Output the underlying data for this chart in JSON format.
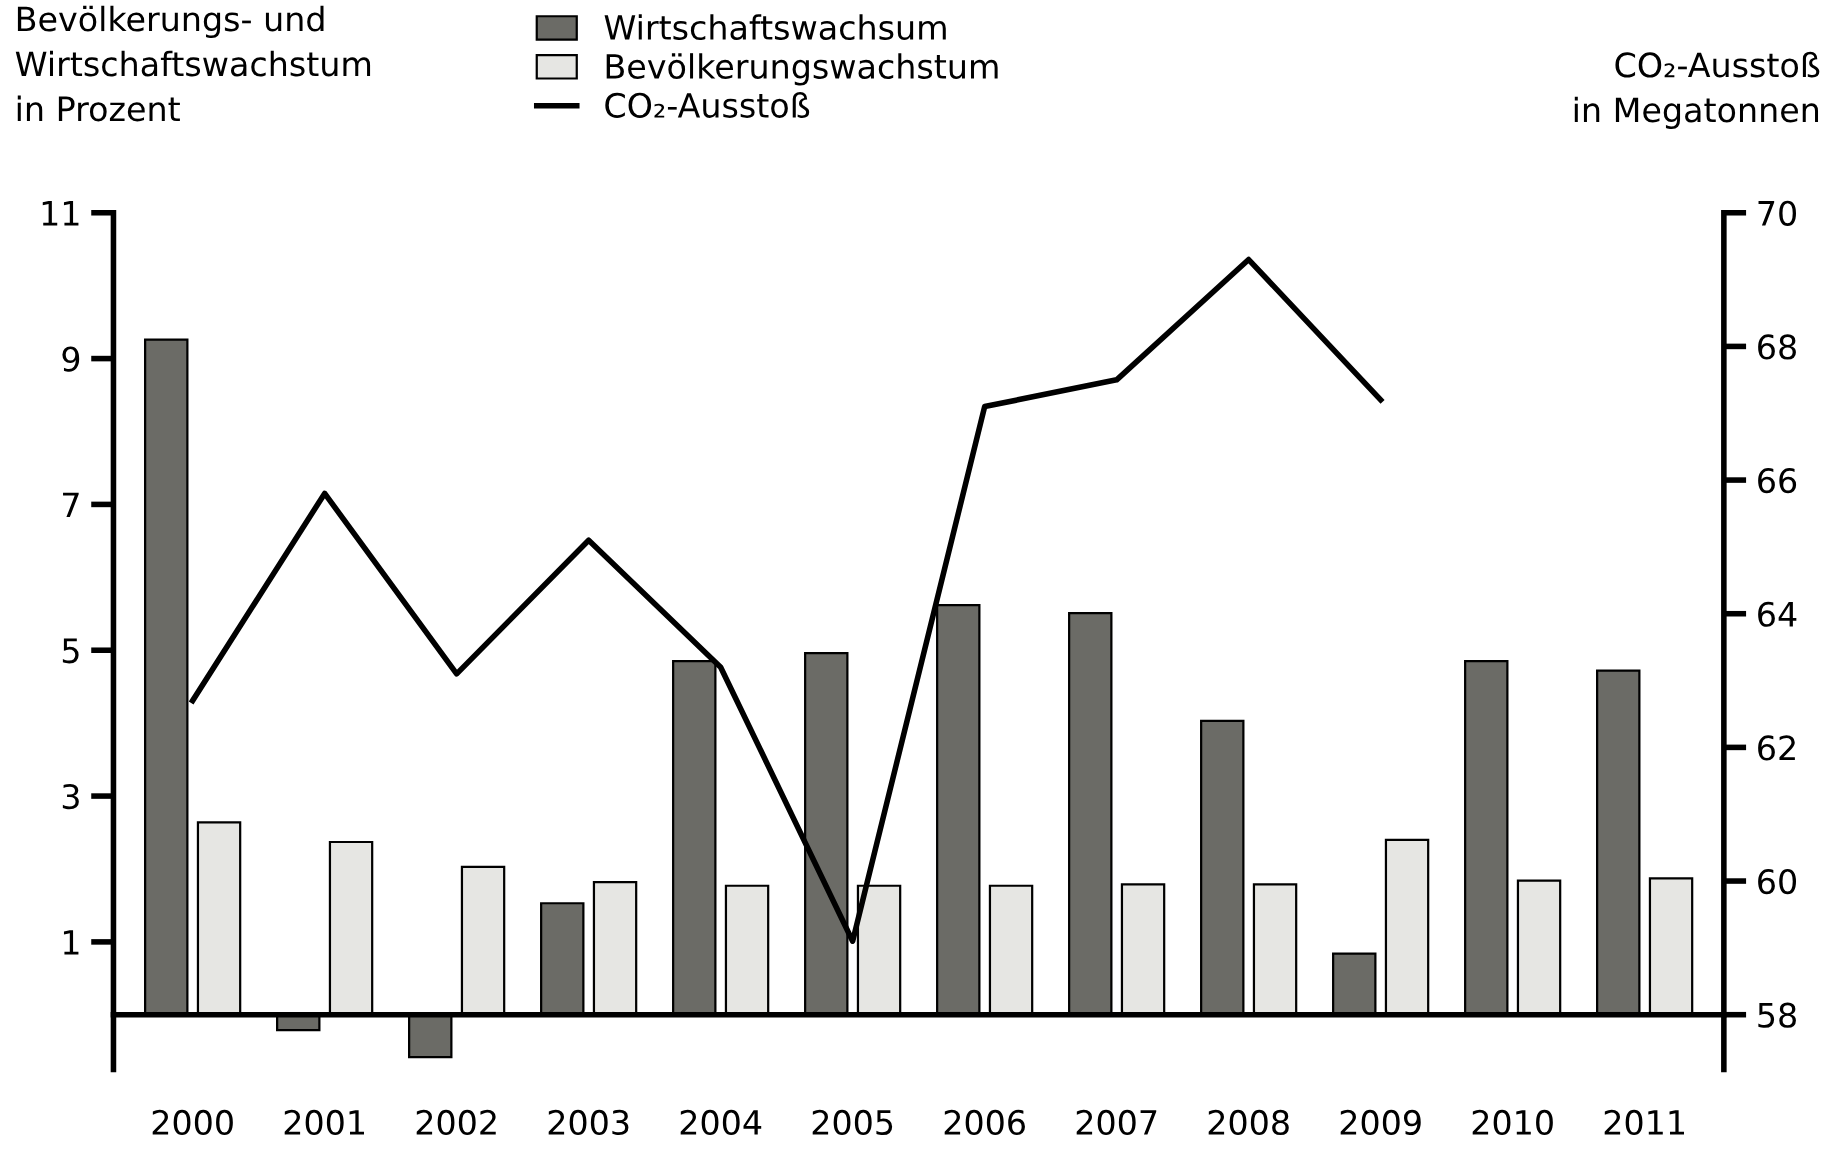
{
  "chart_data": {
    "type": "bar",
    "ylabel": "Bevölkerungs- und\nWirtschaftswachstum\nin Prozent",
    "y2label": "CO₂-Ausstoß\nin Megatonnen",
    "categories": [
      "2000",
      "2001",
      "2002",
      "2003",
      "2004",
      "2005",
      "2006",
      "2007",
      "2008",
      "2009",
      "2010",
      "2011"
    ],
    "series": [
      {
        "name": "Wirtschaftswachsum",
        "color": "#6b6b66",
        "values": [
          9.26,
          -0.21,
          -0.58,
          1.53,
          4.85,
          4.96,
          5.62,
          5.51,
          4.03,
          0.84,
          4.85,
          4.72
        ]
      },
      {
        "name": "Bevölkerungswachstum",
        "color": "#e6e6e3",
        "values": [
          2.64,
          2.37,
          2.03,
          1.82,
          1.77,
          1.77,
          1.77,
          1.79,
          1.79,
          2.4,
          1.84,
          1.87
        ]
      },
      {
        "name": "CO₂-Ausstoß",
        "type": "line",
        "axis": "y2",
        "color": "#000000",
        "values": [
          62.7,
          65.8,
          63.1,
          65.1,
          63.2,
          59.1,
          67.1,
          67.5,
          69.3,
          67.2,
          null,
          null
        ]
      }
    ],
    "ylim": [
      -0.75,
      11
    ],
    "yticks": [
      1,
      3,
      5,
      7,
      9,
      11
    ],
    "y2lim": [
      57.18,
      70
    ],
    "y2ticks": [
      58,
      60,
      62,
      64,
      66,
      68,
      70
    ],
    "legend": "top",
    "marker": "none",
    "line_style": "solid"
  }
}
